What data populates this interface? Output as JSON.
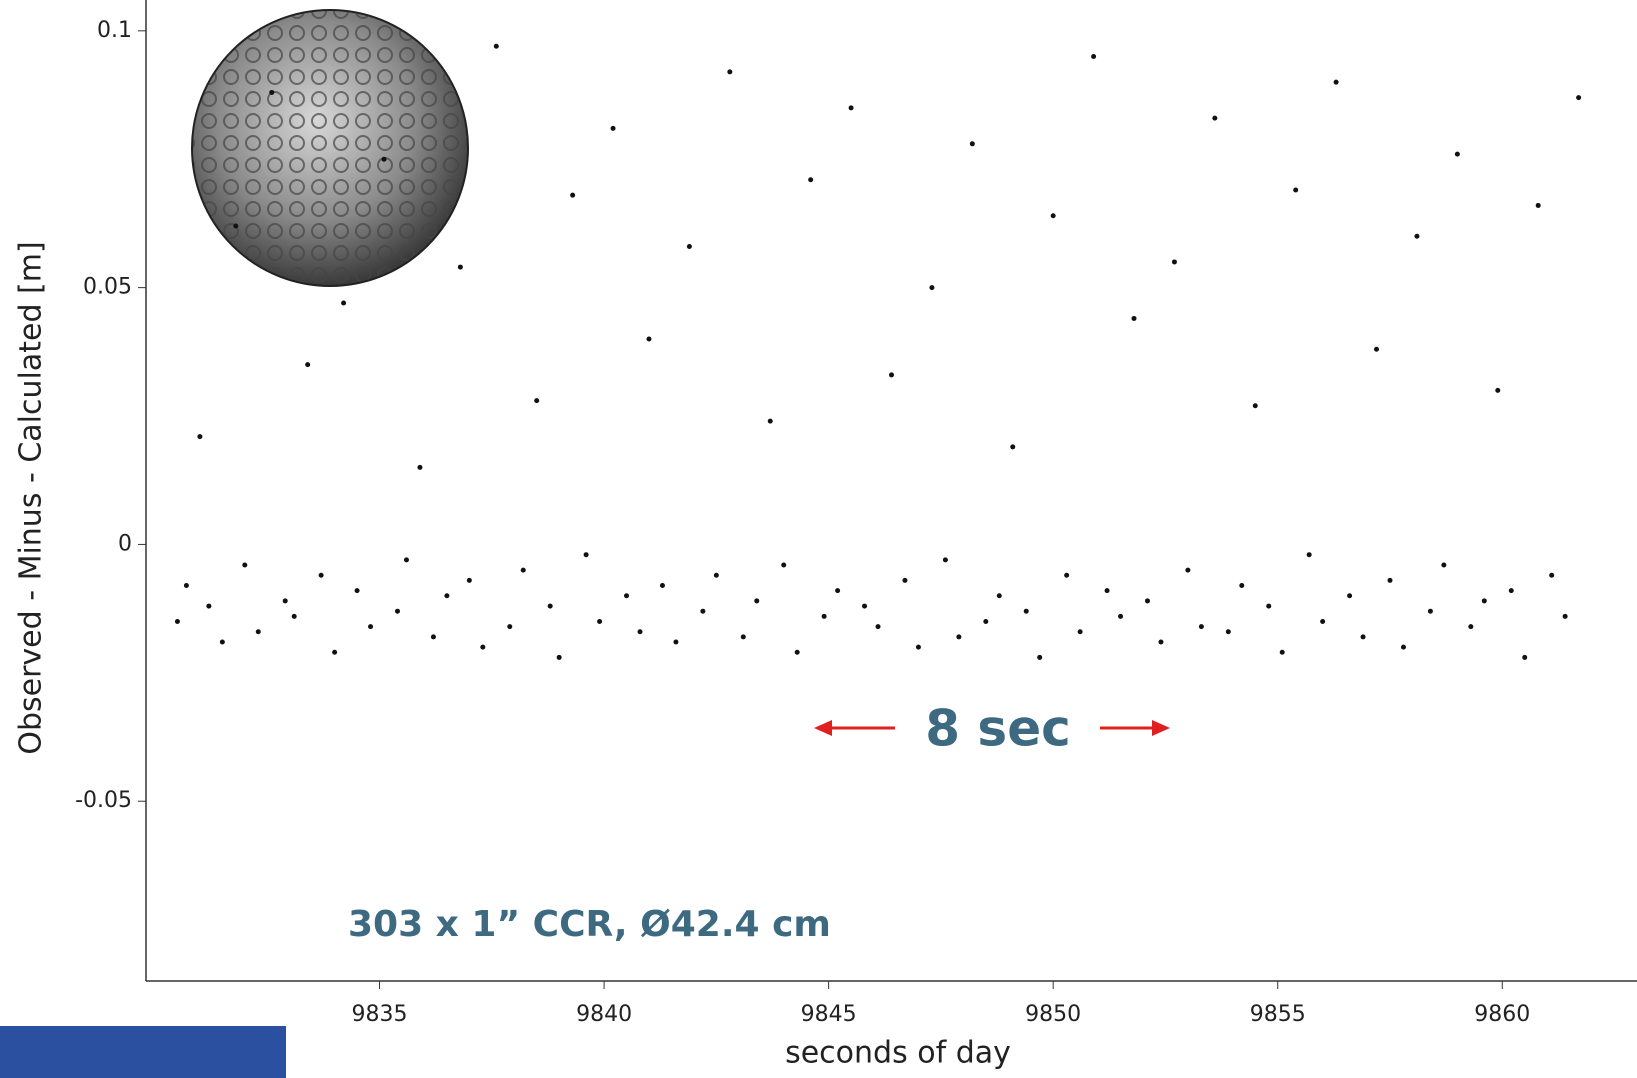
{
  "chart_data": {
    "type": "scatter",
    "xlabel": "seconds of day",
    "ylabel": "Observed - Minus - Calculated [m]",
    "annotations": [
      "8 sec",
      "303 x 1” CCR, Ø42.4 cm"
    ],
    "xlim": [
      9829.8,
      9863
    ],
    "ylim": [
      -0.085,
      0.106
    ],
    "xticks": [
      9835,
      9840,
      9845,
      9850,
      9855,
      9860
    ],
    "yticks": [
      -0.05,
      0,
      0.05,
      0.1
    ],
    "color": "#111111",
    "x": [
      9830.5,
      9830.7,
      9831.0,
      9831.2,
      9831.5,
      9831.8,
      9832.0,
      9832.3,
      9832.6,
      9832.9,
      9833.1,
      9833.4,
      9833.7,
      9834.0,
      9834.2,
      9834.5,
      9834.8,
      9835.1,
      9835.4,
      9835.6,
      9835.9,
      9836.2,
      9836.5,
      9836.8,
      9837.0,
      9837.3,
      9837.6,
      9837.9,
      9838.2,
      9838.5,
      9838.8,
      9839.0,
      9839.3,
      9839.6,
      9839.9,
      9840.2,
      9840.5,
      9840.8,
      9841.0,
      9841.3,
      9841.6,
      9841.9,
      9842.2,
      9842.5,
      9842.8,
      9843.1,
      9843.4,
      9843.7,
      9844.0,
      9844.3,
      9844.6,
      9844.9,
      9845.2,
      9845.5,
      9845.8,
      9846.1,
      9846.4,
      9846.7,
      9847.0,
      9847.3,
      9847.6,
      9847.9,
      9848.2,
      9848.5,
      9848.8,
      9849.1,
      9849.4,
      9849.7,
      9850.0,
      9850.3,
      9850.6,
      9850.9,
      9851.2,
      9851.5,
      9851.8,
      9852.1,
      9852.4,
      9852.7,
      9853.0,
      9853.3,
      9853.6,
      9853.9,
      9854.2,
      9854.5,
      9854.8,
      9855.1,
      9855.4,
      9855.7,
      9856.0,
      9856.3,
      9856.6,
      9856.9,
      9857.2,
      9857.5,
      9857.8,
      9858.1,
      9858.4,
      9858.7,
      9859.0,
      9859.3,
      9859.6,
      9859.9,
      9860.2,
      9860.5,
      9860.8,
      9861.1,
      9861.4,
      9861.7
    ],
    "values": [
      -0.015,
      -0.008,
      0.021,
      -0.012,
      -0.019,
      0.062,
      -0.004,
      -0.017,
      0.088,
      -0.011,
      -0.014,
      0.035,
      -0.006,
      -0.021,
      0.047,
      -0.009,
      -0.016,
      0.075,
      -0.013,
      -0.003,
      0.015,
      -0.018,
      -0.01,
      0.054,
      -0.007,
      -0.02,
      0.097,
      -0.016,
      -0.005,
      0.028,
      -0.012,
      -0.022,
      0.068,
      -0.002,
      -0.015,
      0.081,
      -0.01,
      -0.017,
      0.04,
      -0.008,
      -0.019,
      0.058,
      -0.013,
      -0.006,
      0.092,
      -0.018,
      -0.011,
      0.024,
      -0.004,
      -0.021,
      0.071,
      -0.014,
      -0.009,
      0.085,
      -0.012,
      -0.016,
      0.033,
      -0.007,
      -0.02,
      0.05,
      -0.003,
      -0.018,
      0.078,
      -0.015,
      -0.01,
      0.019,
      -0.013,
      -0.022,
      0.064,
      -0.006,
      -0.017,
      0.095,
      -0.009,
      -0.014,
      0.044,
      -0.011,
      -0.019,
      0.055,
      -0.005,
      -0.016,
      0.083,
      -0.017,
      -0.008,
      0.027,
      -0.012,
      -0.021,
      0.069,
      -0.002,
      -0.015,
      0.09,
      -0.01,
      -0.018,
      0.038,
      -0.007,
      -0.02,
      0.06,
      -0.013,
      -0.004,
      0.076,
      -0.016,
      -0.011,
      0.03,
      -0.009,
      -0.022,
      0.066,
      -0.006,
      -0.014,
      0.087
    ]
  }
}
